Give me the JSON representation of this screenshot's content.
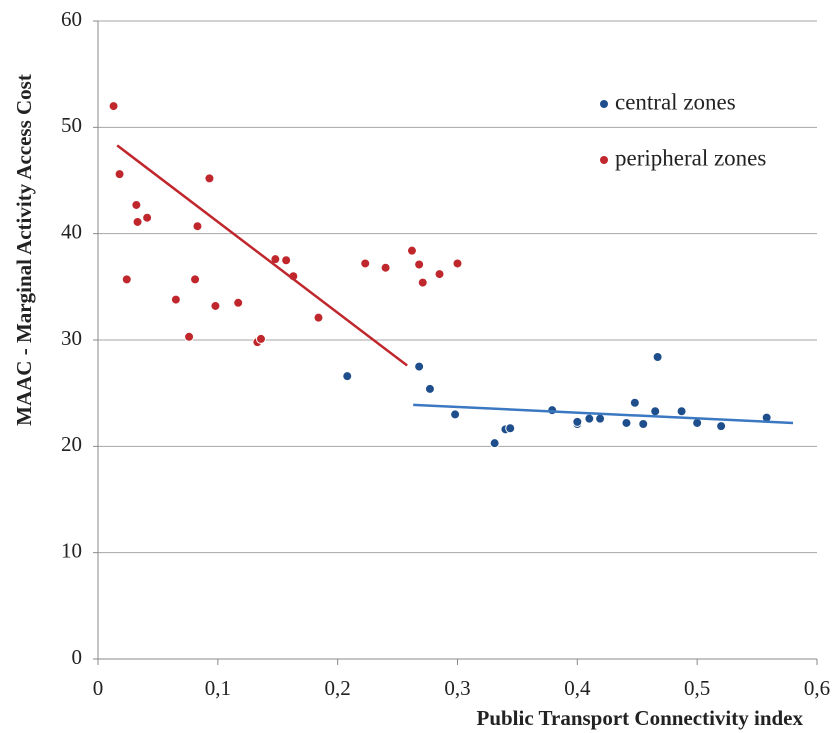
{
  "chart_data": {
    "type": "scatter",
    "x_label": "Public Transport Connectivity index",
    "y_label": "MAAC - Marginal Activity Access Cost",
    "xlim": [
      0,
      0.6
    ],
    "xticks": [
      0,
      {
        "value": 0.1,
        "label": "0,1"
      },
      {
        "value": 0.2,
        "label": "0,2"
      },
      {
        "value": 0.3,
        "label": "0,3"
      },
      {
        "value": 0.4,
        "label": "0,4"
      },
      {
        "value": 0.5,
        "label": "0,5"
      },
      {
        "value": 0.6,
        "label": "0,6"
      }
    ],
    "ylim": [
      0,
      60
    ],
    "yticks": [
      0,
      10,
      20,
      30,
      40,
      50,
      60
    ],
    "grid": true,
    "legend": "top-right",
    "series": [
      {
        "name": "central zones",
        "color": "#1f4e8c",
        "x": [
          0.208,
          0.268,
          0.277,
          0.298,
          0.331,
          0.34,
          0.344,
          0.379,
          0.4,
          0.4,
          0.41,
          0.419,
          0.441,
          0.448,
          0.455,
          0.465,
          0.467,
          0.487,
          0.5,
          0.52,
          0.558
        ],
        "values": [
          26.6,
          27.5,
          25.4,
          23.0,
          20.3,
          21.6,
          21.7,
          23.4,
          22.1,
          22.3,
          22.6,
          22.6,
          22.2,
          24.1,
          22.1,
          23.3,
          28.4,
          23.3,
          22.2,
          21.9,
          22.7
        ]
      },
      {
        "name": "peripheral zones",
        "color": "#c0272d",
        "x": [
          0.013,
          0.018,
          0.024,
          0.032,
          0.033,
          0.041,
          0.065,
          0.076,
          0.081,
          0.083,
          0.093,
          0.098,
          0.117,
          0.133,
          0.136,
          0.148,
          0.157,
          0.163,
          0.184,
          0.223,
          0.24,
          0.262,
          0.268,
          0.271,
          0.285,
          0.3
        ],
        "values": [
          52.0,
          45.6,
          35.7,
          42.7,
          41.1,
          41.5,
          33.8,
          30.3,
          35.7,
          40.7,
          45.2,
          33.2,
          33.5,
          29.8,
          30.1,
          37.6,
          37.5,
          36.0,
          32.1,
          37.2,
          36.8,
          38.4,
          37.1,
          35.4,
          36.2,
          37.2
        ]
      }
    ],
    "trendlines": [
      {
        "color": "#3a78c2",
        "x": [
          0.263,
          0.58
        ],
        "values": [
          23.9,
          22.2
        ]
      },
      {
        "color": "#c0272d",
        "x": [
          0.016,
          0.258
        ],
        "values": [
          48.3,
          27.6
        ]
      }
    ]
  }
}
